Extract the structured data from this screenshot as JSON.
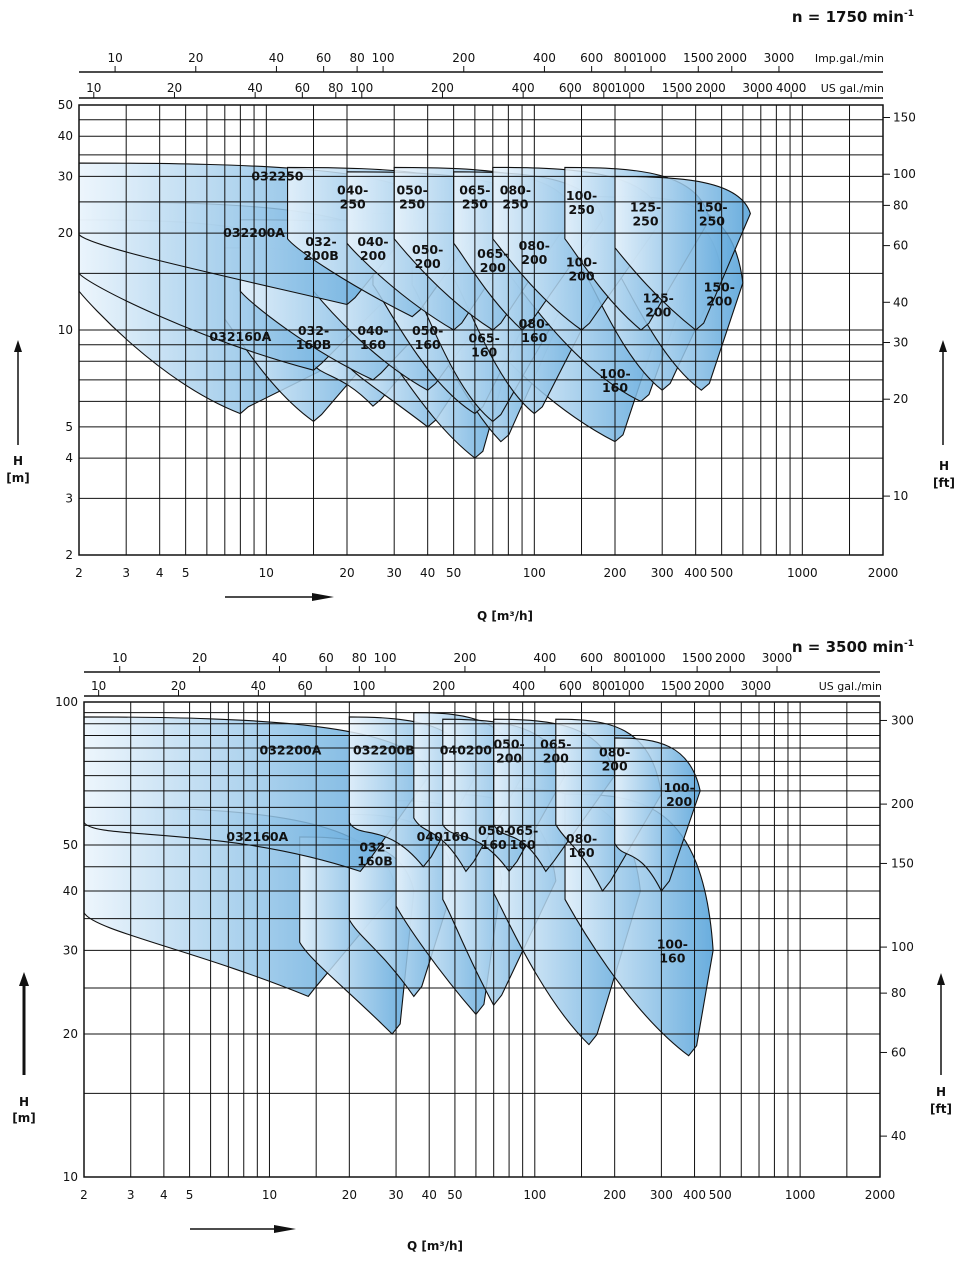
{
  "chart_data": [
    {
      "type": "pump-selection-chart",
      "speed_label": "n = 1750 min",
      "speed_superscript": "-1",
      "x_axis": {
        "label": "Q [m³/h]",
        "scale": "log",
        "range": [
          2,
          2000
        ],
        "ticks": [
          "2",
          "3",
          "4",
          "5",
          "10",
          "20",
          "30",
          "40",
          "50",
          "100",
          "200",
          "300",
          "400",
          "500",
          "1000",
          "2000"
        ]
      },
      "top_axis_imp": {
        "unit": "Imp.gal./min",
        "ticks": [
          "10",
          "20",
          "40",
          "60",
          "80",
          "100",
          "200",
          "400",
          "600",
          "800",
          "1000",
          "1500",
          "2000",
          "3000"
        ]
      },
      "top_axis_us": {
        "unit": "US gal./min",
        "ticks": [
          "10",
          "20",
          "40",
          "60",
          "80",
          "100",
          "200",
          "400",
          "600",
          "800",
          "1000",
          "1500",
          "2000",
          "3000",
          "4000"
        ]
      },
      "y_axis_left": {
        "label": "H",
        "unit": "[m]",
        "scale": "log",
        "range": [
          2,
          50
        ],
        "ticks": [
          "2",
          "3",
          "4",
          "5",
          "10",
          "20",
          "30",
          "40",
          "50"
        ]
      },
      "y_axis_right": {
        "label": "H",
        "unit": "[ft]",
        "ticks": [
          "10",
          "20",
          "30",
          "40",
          "60",
          "80",
          "100",
          "150"
        ]
      },
      "series": [
        {
          "name": "032250",
          "head_at_zero_flow_m": 33
        },
        {
          "name": "040-250"
        },
        {
          "name": "050-250"
        },
        {
          "name": "065-250"
        },
        {
          "name": "080-250"
        },
        {
          "name": "100-250"
        },
        {
          "name": "125-250"
        },
        {
          "name": "150-250"
        },
        {
          "name": "032200A",
          "head_at_zero_flow_m": 25
        },
        {
          "name": "032-200B"
        },
        {
          "name": "040-200"
        },
        {
          "name": "050-200"
        },
        {
          "name": "065-200"
        },
        {
          "name": "080-200"
        },
        {
          "name": "100-200"
        },
        {
          "name": "125-200"
        },
        {
          "name": "150-200"
        },
        {
          "name": "032160A",
          "head_at_zero_flow_m": 15
        },
        {
          "name": "032-160B"
        },
        {
          "name": "040-160"
        },
        {
          "name": "050-160"
        },
        {
          "name": "065-160"
        },
        {
          "name": "080-160"
        },
        {
          "name": "100-160"
        }
      ],
      "labels_text": [
        "032250",
        "040-",
        "250",
        "050-",
        "250",
        "065-",
        "250",
        "080-",
        "250",
        "100-",
        "250",
        "125-",
        "250",
        "150-",
        "250",
        "032200A",
        "032-",
        "200B",
        "040-",
        "200",
        "050-",
        "200",
        "065-",
        "200",
        "080-",
        "200",
        "100-",
        "200",
        "125-",
        "200",
        "150-",
        "200",
        "032160A",
        "032-",
        "160B",
        "040-",
        "160",
        "050-",
        "160",
        "065-",
        "160",
        "080-",
        "160",
        "100-",
        "160"
      ]
    },
    {
      "type": "pump-selection-chart",
      "speed_label": "n = 3500 min",
      "speed_superscript": "-1",
      "x_axis": {
        "label": "Q [m³/h]",
        "scale": "log",
        "range": [
          2,
          2000
        ],
        "ticks": [
          "2",
          "3",
          "4",
          "5",
          "10",
          "20",
          "30",
          "40",
          "50",
          "100",
          "200",
          "300",
          "400",
          "500",
          "1000",
          "2000"
        ]
      },
      "top_axis_imp": {
        "ticks": [
          "10",
          "20",
          "40",
          "60",
          "80",
          "100",
          "200",
          "400",
          "600",
          "800",
          "1000",
          "1500",
          "2000",
          "3000"
        ]
      },
      "top_axis_us": {
        "unit": "US gal./min",
        "ticks": [
          "10",
          "20",
          "40",
          "60",
          "100",
          "200",
          "400",
          "600",
          "800",
          "1000",
          "1500",
          "2000",
          "3000"
        ]
      },
      "y_axis_left": {
        "label": "H",
        "unit": "[m]",
        "scale": "log",
        "range": [
          10,
          100
        ],
        "ticks": [
          "10",
          "20",
          "30",
          "40",
          "50",
          "100"
        ]
      },
      "y_axis_right": {
        "label": "H",
        "unit": "[ft]",
        "ticks": [
          "40",
          "60",
          "80",
          "100",
          "150",
          "200",
          "300"
        ]
      },
      "series": [
        {
          "name": "032200A",
          "head_at_zero_flow_m": 93
        },
        {
          "name": "032200B"
        },
        {
          "name": "040200"
        },
        {
          "name": "050-200"
        },
        {
          "name": "065-200"
        },
        {
          "name": "080-200"
        },
        {
          "name": "100-200"
        },
        {
          "name": "032160A",
          "head_at_zero_flow_m": 60
        },
        {
          "name": "032-160B"
        },
        {
          "name": "040160"
        },
        {
          "name": "050-160"
        },
        {
          "name": "065-160"
        },
        {
          "name": "080-160"
        },
        {
          "name": "100-160"
        }
      ],
      "labels_text": [
        "032200A",
        "032200B",
        "040200",
        "050-",
        "200",
        "065-",
        "200",
        "080-",
        "200",
        "100-",
        "200",
        "032160A",
        "032-",
        "160B",
        "040160",
        "050-",
        "160",
        "065-",
        "160",
        "080-",
        "160",
        "100-",
        "160"
      ]
    }
  ],
  "colors": {
    "grid": "#111111",
    "curve_light": "#eaf4fc",
    "curve_dark": "#4f9fd8"
  }
}
